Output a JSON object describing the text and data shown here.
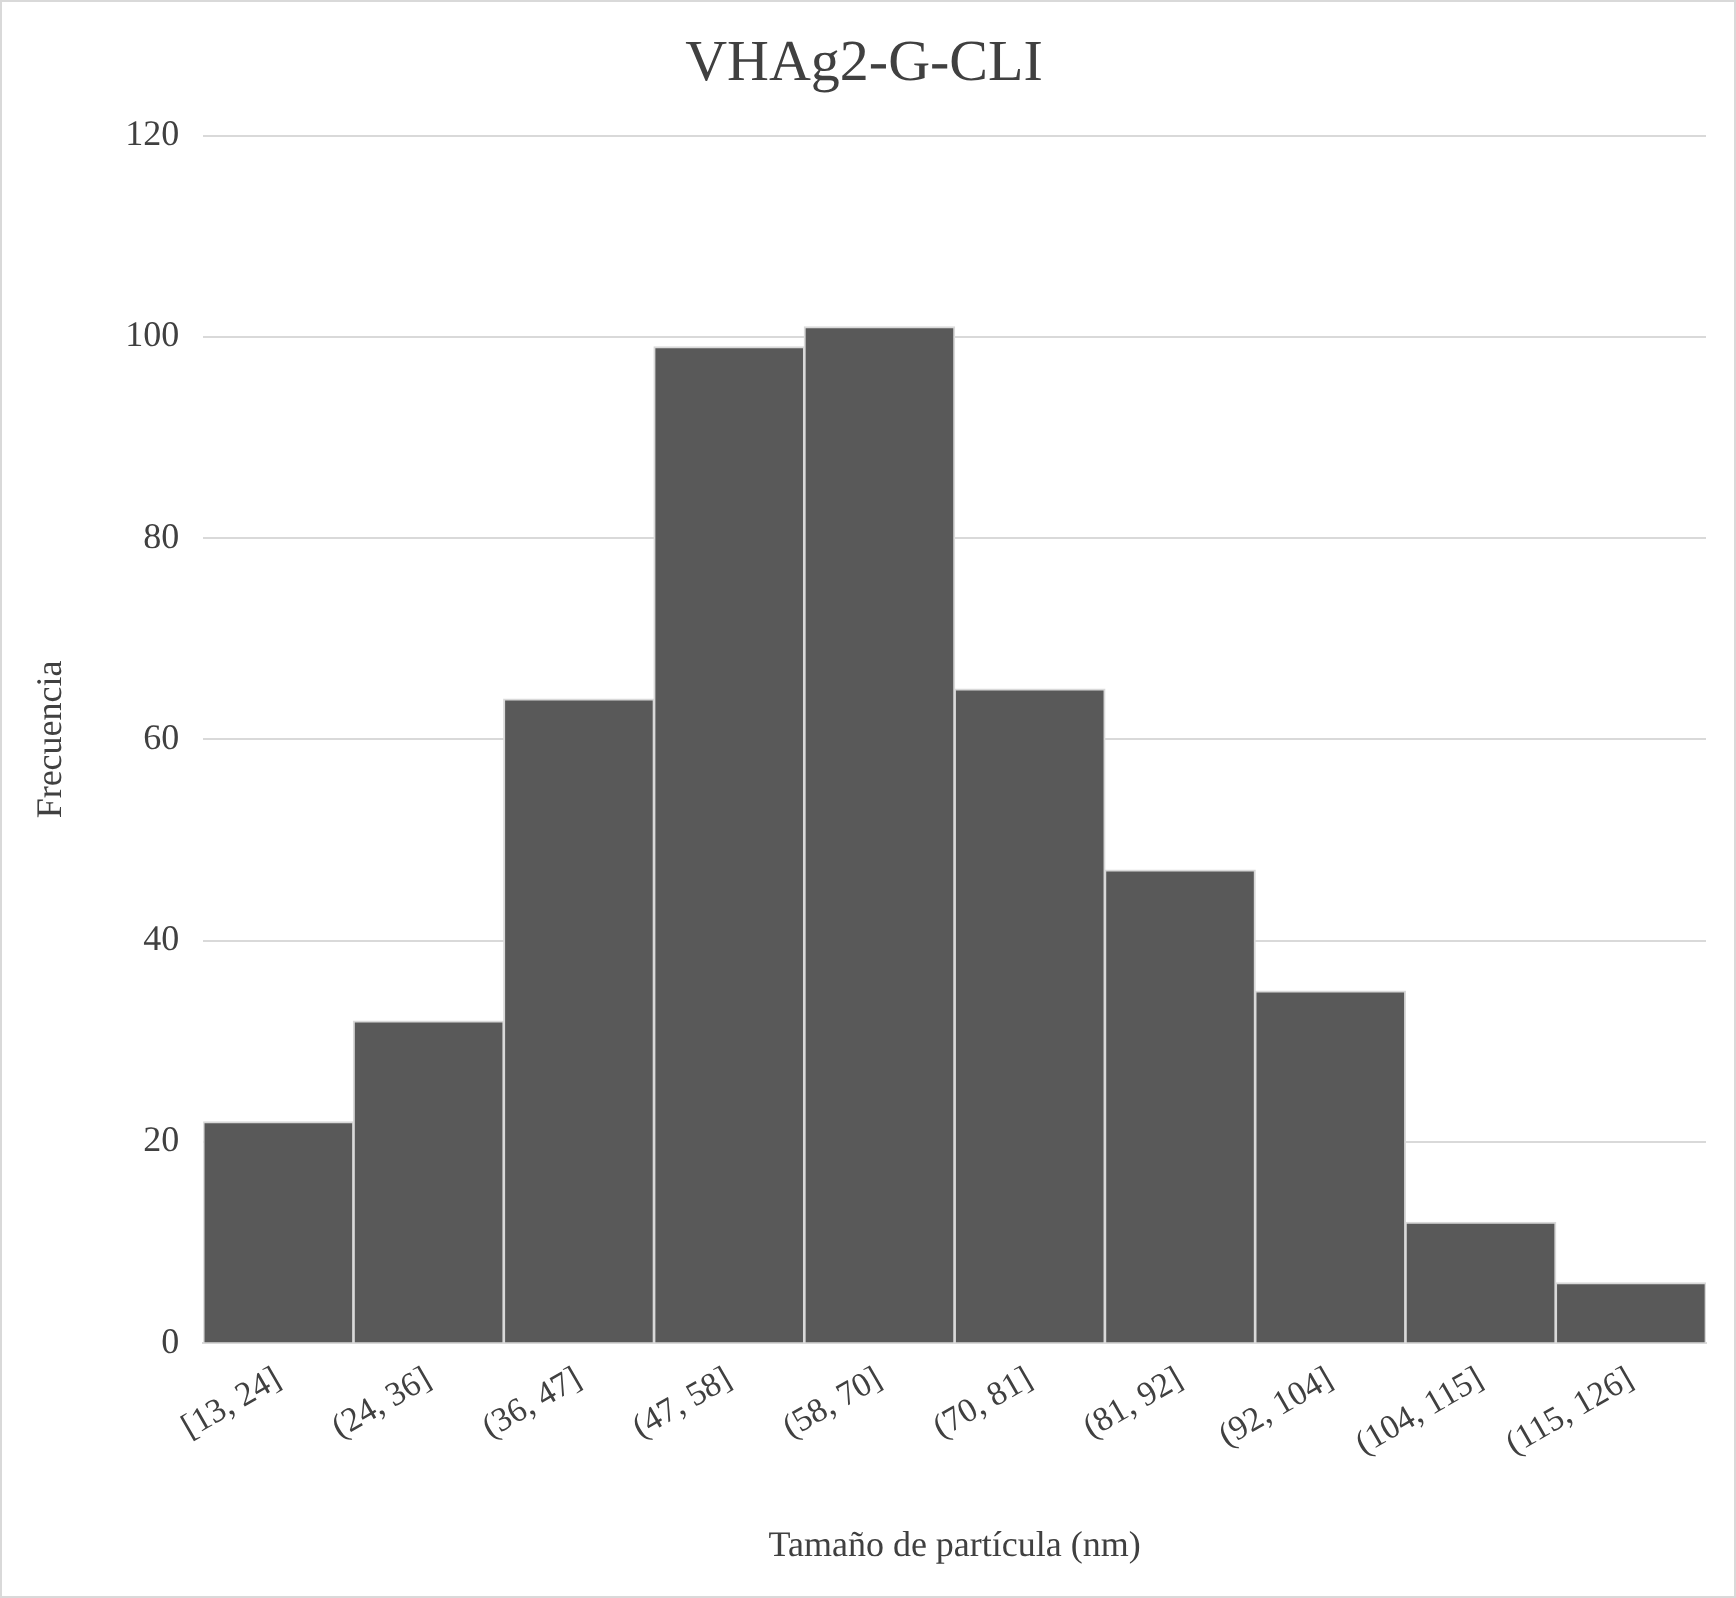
{
  "chart_data": {
    "type": "bar",
    "title": "VHAg2-G-CLI",
    "xlabel": "Tamaño de partícula (nm)",
    "ylabel": "Frecuencia",
    "categories": [
      "[13, 24]",
      "(24, 36]",
      "(36, 47]",
      "(47, 58]",
      "(58, 70]",
      "(70, 81]",
      "(81, 92]",
      "(92, 104]",
      "(104, 115]",
      "(115, 126]"
    ],
    "values": [
      22,
      32,
      64,
      99,
      101,
      65,
      47,
      35,
      12,
      6
    ],
    "color": "#595959",
    "ylim": [
      0,
      120
    ],
    "yticks": [
      0,
      20,
      40,
      60,
      80,
      100,
      120
    ],
    "grid": "y"
  }
}
